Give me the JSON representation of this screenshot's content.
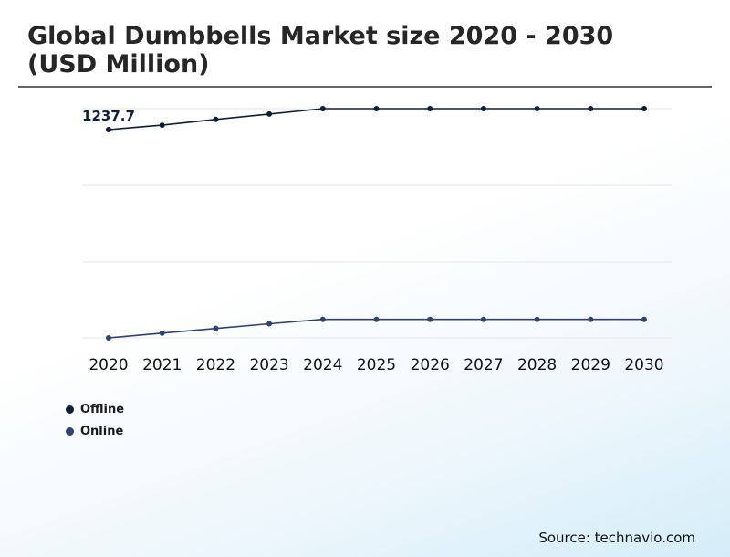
{
  "title": "Global Dumbbells Market size 2020 - 2030 (USD Million)",
  "source": "Source: technavio.com",
  "colors": {
    "offline": "#0d1f3c",
    "online": "#2e4372",
    "grid": "#e6e6e6"
  },
  "chart_data": {
    "type": "line",
    "categories": [
      "2020",
      "2021",
      "2022",
      "2023",
      "2024",
      "2025",
      "2026",
      "2027",
      "2028",
      "2029",
      "2030"
    ],
    "series": [
      {
        "name": "Offline",
        "values": [
          1237.7,
          1251,
          1268,
          1284,
          1300,
          1300,
          1300,
          1300,
          1300,
          1300,
          1300
        ]
      },
      {
        "name": "Online",
        "values": [
          620,
          634,
          648,
          662,
          675,
          675,
          675,
          675,
          675,
          675,
          675
        ]
      }
    ],
    "data_labels": [
      {
        "series": "Offline",
        "category": "2020",
        "text": "1237.7"
      }
    ],
    "ylim": [
      620,
      1300
    ],
    "grid": true,
    "legend": "bottom-left",
    "xlabel": "",
    "ylabel": ""
  }
}
